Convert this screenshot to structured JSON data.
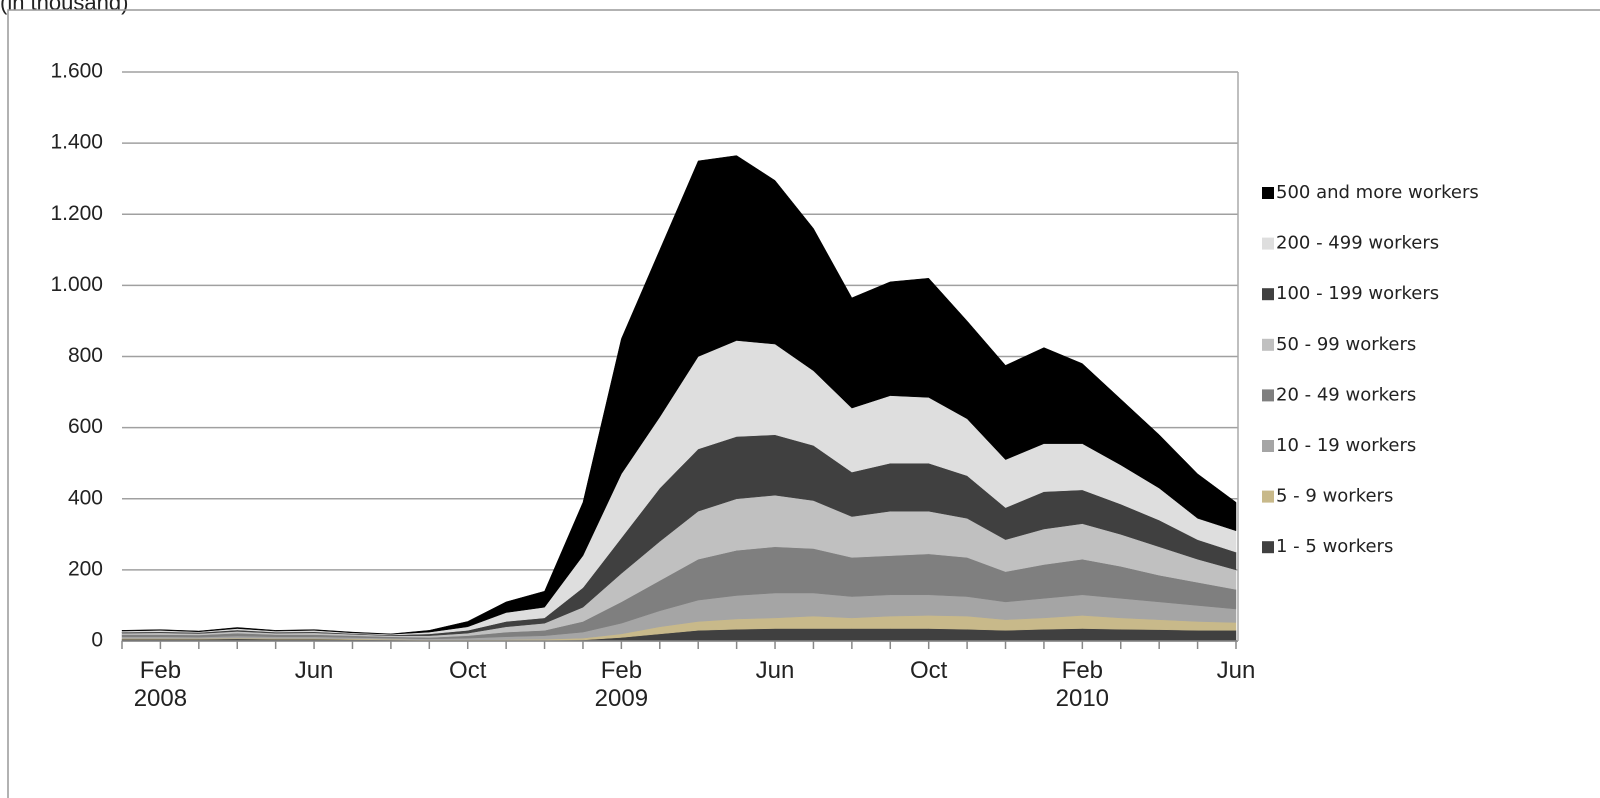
{
  "chart_data": {
    "type": "stacked_area",
    "title": "(in thousand)",
    "categories": [
      null,
      "Feb\n2008",
      null,
      null,
      null,
      "Jun",
      null,
      null,
      null,
      "Oct",
      null,
      null,
      null,
      "Feb\n2009",
      null,
      null,
      null,
      "Jun",
      null,
      null,
      null,
      "Oct",
      null,
      null,
      null,
      "Feb\n2010",
      null,
      null,
      null,
      "Jun"
    ],
    "series": [
      {
        "name": "1 - 5 workers",
        "color": "#404040",
        "values": [
          5,
          5,
          5,
          6,
          5,
          5,
          4,
          3,
          2,
          2,
          2,
          2,
          3,
          10,
          20,
          30,
          33,
          35,
          35,
          35,
          35,
          35,
          33,
          30,
          33,
          35,
          33,
          32,
          30,
          30
        ]
      },
      {
        "name": "5 - 9 workers",
        "color": "#c8b98a",
        "values": [
          2,
          2,
          2,
          2,
          2,
          2,
          2,
          2,
          1,
          1,
          2,
          3,
          5,
          10,
          20,
          25,
          29,
          30,
          35,
          30,
          35,
          37,
          37,
          30,
          32,
          37,
          32,
          28,
          25,
          22
        ]
      },
      {
        "name": "10 - 19 workers",
        "color": "#a5a5a5",
        "values": [
          5,
          5,
          4,
          6,
          5,
          5,
          4,
          3,
          3,
          5,
          8,
          10,
          17,
          30,
          45,
          60,
          66,
          70,
          65,
          60,
          60,
          58,
          55,
          50,
          55,
          58,
          55,
          50,
          45,
          38
        ]
      },
      {
        "name": "20 - 49 workers",
        "color": "#7f7f7f",
        "values": [
          6,
          6,
          6,
          8,
          6,
          6,
          5,
          4,
          4,
          7,
          13,
          15,
          30,
          60,
          85,
          115,
          127,
          130,
          125,
          110,
          110,
          115,
          110,
          85,
          95,
          100,
          90,
          75,
          65,
          55
        ]
      },
      {
        "name": "50 - 99 workers",
        "color": "#c0c0c0",
        "values": [
          4,
          5,
          4,
          5,
          4,
          5,
          4,
          3,
          5,
          7,
          15,
          20,
          40,
          80,
          110,
          135,
          145,
          145,
          135,
          115,
          125,
          120,
          110,
          90,
          100,
          100,
          90,
          80,
          65,
          55
        ]
      },
      {
        "name": "100 - 199 workers",
        "color": "#404040",
        "values": [
          3,
          3,
          3,
          4,
          3,
          3,
          2,
          2,
          5,
          8,
          15,
          15,
          55,
          100,
          150,
          175,
          175,
          170,
          155,
          125,
          135,
          135,
          120,
          90,
          105,
          95,
          85,
          75,
          55,
          50
        ]
      },
      {
        "name": "200 - 499 workers",
        "color": "#dedede",
        "values": [
          3,
          4,
          2,
          4,
          3,
          4,
          2,
          2,
          5,
          10,
          25,
          30,
          90,
          180,
          200,
          260,
          270,
          255,
          210,
          180,
          190,
          185,
          160,
          135,
          135,
          130,
          110,
          90,
          60,
          60
        ]
      },
      {
        "name": "500 and more workers",
        "color": "#000000",
        "values": [
          2,
          2,
          2,
          3,
          2,
          2,
          2,
          1,
          5,
          15,
          30,
          45,
          150,
          380,
          470,
          550,
          520,
          460,
          400,
          310,
          320,
          335,
          275,
          265,
          270,
          225,
          185,
          150,
          125,
          80
        ]
      }
    ],
    "ylim": [
      0,
      1600
    ],
    "yticks": [
      0,
      200,
      400,
      600,
      800,
      {
        "value": 1000,
        "label": "1.000"
      },
      {
        "value": 1200,
        "label": "1.200"
      },
      {
        "value": 1400,
        "label": "1.400"
      },
      {
        "value": 1600,
        "label": "1.600"
      }
    ],
    "grid": true,
    "legend": "right"
  }
}
